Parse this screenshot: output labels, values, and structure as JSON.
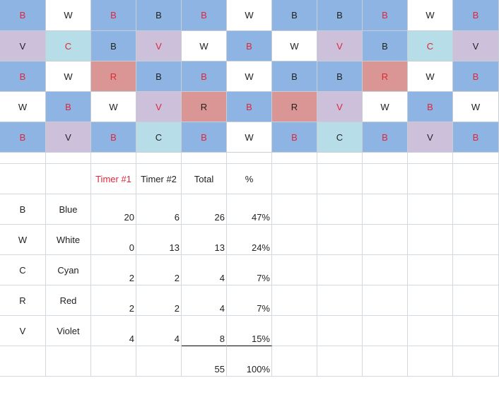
{
  "colors": {
    "B": "#8eb4e3",
    "W": "#ffffff",
    "V": "#ccc0da",
    "C": "#b7dee8",
    "R": "#da9694",
    "red_text": "#e0263a",
    "grid_line": "#c9cdd6"
  },
  "grid": [
    [
      {
        "letter": "B",
        "color": "B",
        "text": "red"
      },
      {
        "letter": "W",
        "color": "W",
        "text": "dark"
      },
      {
        "letter": "B",
        "color": "B",
        "text": "red"
      },
      {
        "letter": "B",
        "color": "B",
        "text": "dark"
      },
      {
        "letter": "B",
        "color": "B",
        "text": "red"
      },
      {
        "letter": "W",
        "color": "W",
        "text": "dark"
      },
      {
        "letter": "B",
        "color": "B",
        "text": "dark"
      },
      {
        "letter": "B",
        "color": "B",
        "text": "dark"
      },
      {
        "letter": "B",
        "color": "B",
        "text": "red"
      },
      {
        "letter": "W",
        "color": "W",
        "text": "dark"
      },
      {
        "letter": "B",
        "color": "B",
        "text": "red"
      }
    ],
    [
      {
        "letter": "V",
        "color": "V",
        "text": "dark"
      },
      {
        "letter": "C",
        "color": "C",
        "text": "red"
      },
      {
        "letter": "B",
        "color": "B",
        "text": "dark"
      },
      {
        "letter": "V",
        "color": "V",
        "text": "red"
      },
      {
        "letter": "W",
        "color": "W",
        "text": "dark"
      },
      {
        "letter": "B",
        "color": "B",
        "text": "red"
      },
      {
        "letter": "W",
        "color": "W",
        "text": "dark"
      },
      {
        "letter": "V",
        "color": "V",
        "text": "red"
      },
      {
        "letter": "B",
        "color": "B",
        "text": "dark"
      },
      {
        "letter": "C",
        "color": "C",
        "text": "red"
      },
      {
        "letter": "V",
        "color": "V",
        "text": "dark"
      }
    ],
    [
      {
        "letter": "B",
        "color": "B",
        "text": "red"
      },
      {
        "letter": "W",
        "color": "W",
        "text": "dark"
      },
      {
        "letter": "R",
        "color": "R",
        "text": "red"
      },
      {
        "letter": "B",
        "color": "B",
        "text": "dark"
      },
      {
        "letter": "B",
        "color": "B",
        "text": "red"
      },
      {
        "letter": "W",
        "color": "W",
        "text": "dark"
      },
      {
        "letter": "B",
        "color": "B",
        "text": "dark"
      },
      {
        "letter": "B",
        "color": "B",
        "text": "dark"
      },
      {
        "letter": "R",
        "color": "R",
        "text": "red"
      },
      {
        "letter": "W",
        "color": "W",
        "text": "dark"
      },
      {
        "letter": "B",
        "color": "B",
        "text": "red"
      }
    ],
    [
      {
        "letter": "W",
        "color": "W",
        "text": "dark"
      },
      {
        "letter": "B",
        "color": "B",
        "text": "red"
      },
      {
        "letter": "W",
        "color": "W",
        "text": "dark"
      },
      {
        "letter": "V",
        "color": "V",
        "text": "red"
      },
      {
        "letter": "R",
        "color": "R",
        "text": "dark"
      },
      {
        "letter": "B",
        "color": "B",
        "text": "red"
      },
      {
        "letter": "R",
        "color": "R",
        "text": "dark"
      },
      {
        "letter": "V",
        "color": "V",
        "text": "red"
      },
      {
        "letter": "W",
        "color": "W",
        "text": "dark"
      },
      {
        "letter": "B",
        "color": "B",
        "text": "red"
      },
      {
        "letter": "W",
        "color": "W",
        "text": "dark"
      }
    ],
    [
      {
        "letter": "B",
        "color": "B",
        "text": "red"
      },
      {
        "letter": "V",
        "color": "V",
        "text": "dark"
      },
      {
        "letter": "B",
        "color": "B",
        "text": "red"
      },
      {
        "letter": "C",
        "color": "C",
        "text": "dark"
      },
      {
        "letter": "B",
        "color": "B",
        "text": "red"
      },
      {
        "letter": "W",
        "color": "W",
        "text": "dark"
      },
      {
        "letter": "B",
        "color": "B",
        "text": "red"
      },
      {
        "letter": "C",
        "color": "C",
        "text": "dark"
      },
      {
        "letter": "B",
        "color": "B",
        "text": "red"
      },
      {
        "letter": "V",
        "color": "V",
        "text": "dark"
      },
      {
        "letter": "B",
        "color": "B",
        "text": "red"
      }
    ]
  ],
  "table": {
    "headers": {
      "timer1": "Timer #1",
      "timer2": "Timer #2",
      "total": "Total",
      "pct": "%"
    },
    "rows": [
      {
        "code": "B",
        "name": "Blue",
        "timer1": "20",
        "timer2": "6",
        "total": "26",
        "pct": "47%"
      },
      {
        "code": "W",
        "name": "White",
        "timer1": "0",
        "timer2": "13",
        "total": "13",
        "pct": "24%"
      },
      {
        "code": "C",
        "name": "Cyan",
        "timer1": "2",
        "timer2": "2",
        "total": "4",
        "pct": "7%"
      },
      {
        "code": "R",
        "name": "Red",
        "timer1": "2",
        "timer2": "2",
        "total": "4",
        "pct": "7%"
      },
      {
        "code": "V",
        "name": "Violet",
        "timer1": "4",
        "timer2": "4",
        "total": "8",
        "pct": "15%"
      }
    ],
    "grand_total": "55",
    "grand_pct": "100%"
  }
}
